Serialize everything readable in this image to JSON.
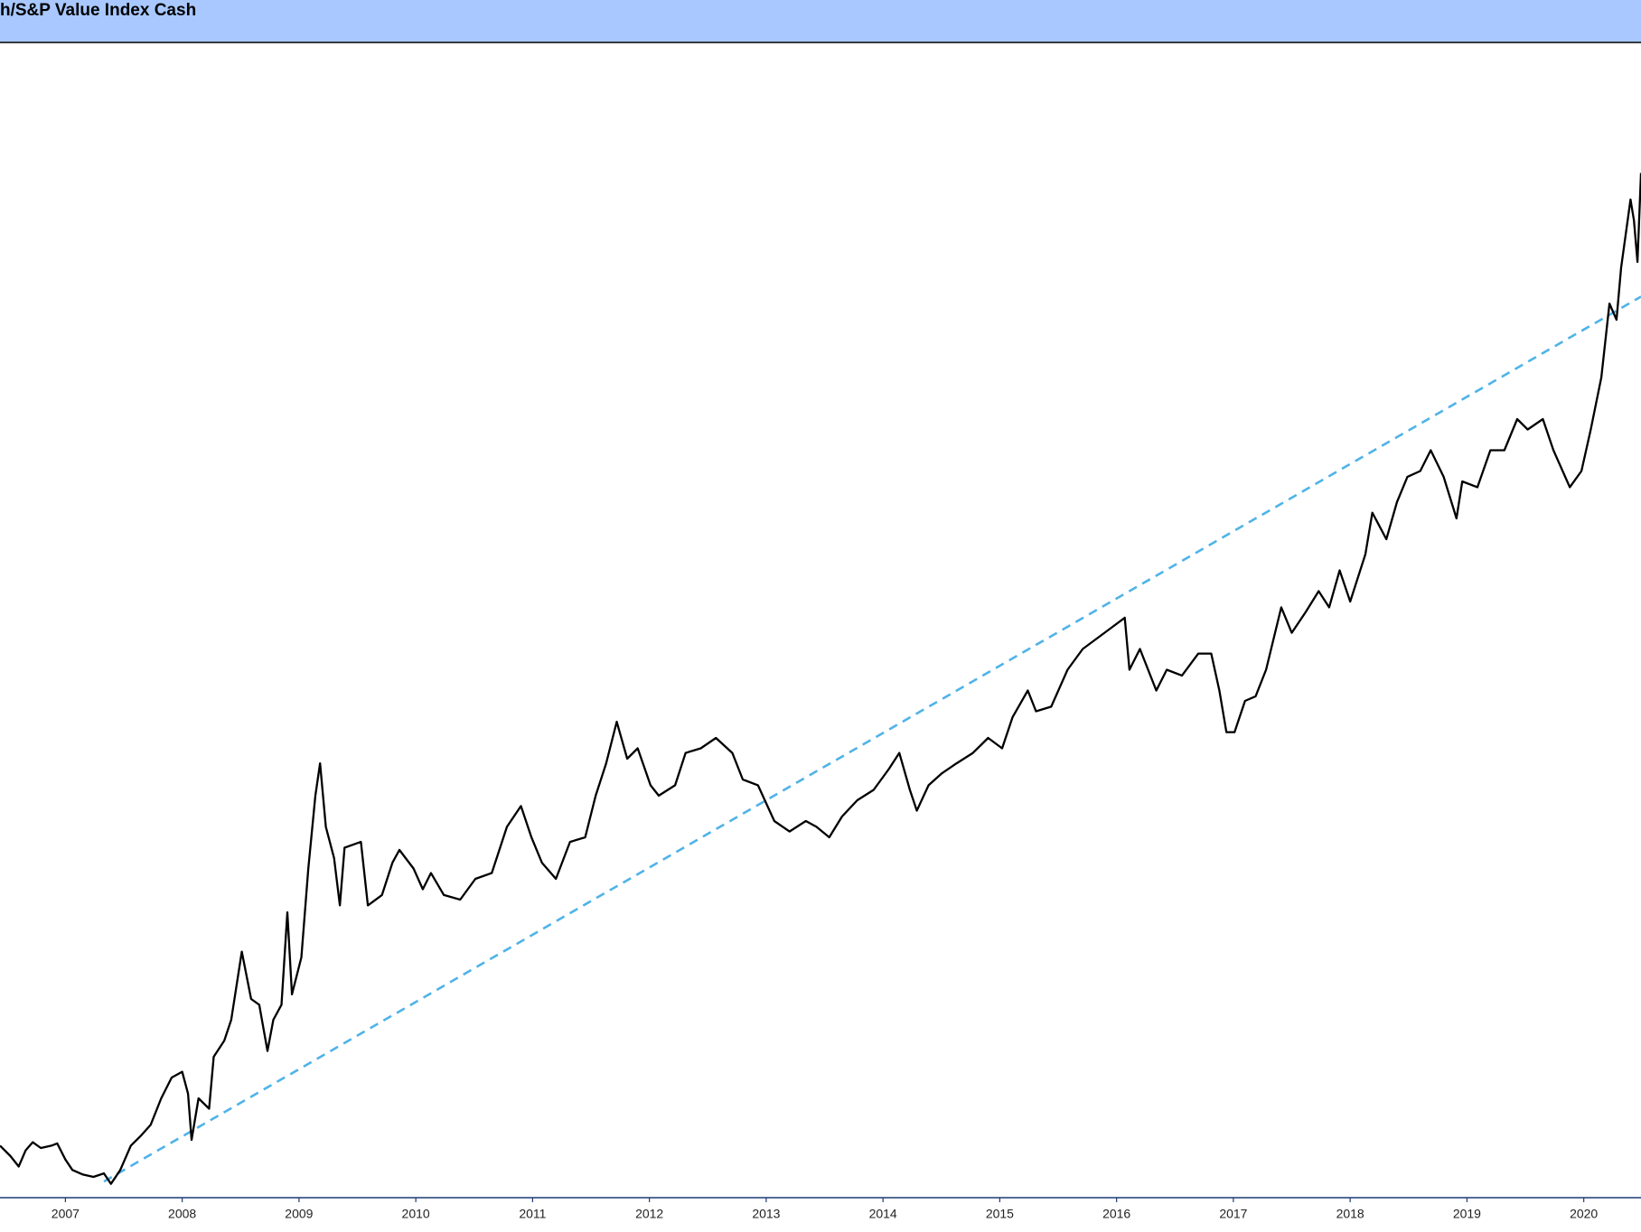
{
  "chart_data": {
    "type": "line",
    "title": "h/S&P Value Index Cash",
    "xlim": [
      2006.44,
      2020.49
    ],
    "xticks": [
      2007,
      2008,
      2009,
      2010,
      2011,
      2012,
      2013,
      2014,
      2015,
      2016,
      2017,
      2018,
      2019,
      2020
    ],
    "ylim": [
      0,
      100
    ],
    "header_color": "#a8c8ff",
    "axis_color": "#1f3b73",
    "series": [
      {
        "color": "#000000",
        "dashed": false,
        "x": [
          2006.44,
          2006.53,
          2006.6,
          2006.66,
          2006.72,
          2006.79,
          2006.88,
          2006.93,
          2007.0,
          2007.06,
          2007.15,
          2007.24,
          2007.33,
          2007.39,
          2007.47,
          2007.56,
          2007.65,
          2007.73,
          2007.82,
          2007.91,
          2008.0,
          2008.05,
          2008.08,
          2008.14,
          2008.23,
          2008.27,
          2008.36,
          2008.42,
          2008.51,
          2008.59,
          2008.66,
          2008.73,
          2008.78,
          2008.85,
          2008.9,
          2008.94,
          2009.02,
          2009.08,
          2009.14,
          2009.18,
          2009.23,
          2009.3,
          2009.35,
          2009.39,
          2009.53,
          2009.59,
          2009.71,
          2009.8,
          2009.86,
          2009.98,
          2010.06,
          2010.13,
          2010.24,
          2010.38,
          2010.51,
          2010.65,
          2010.78,
          2010.9,
          2010.99,
          2011.08,
          2011.2,
          2011.32,
          2011.45,
          2011.54,
          2011.63,
          2011.72,
          2011.81,
          2011.9,
          2012.01,
          2012.08,
          2012.22,
          2012.31,
          2012.44,
          2012.57,
          2012.71,
          2012.8,
          2012.93,
          2013.07,
          2013.2,
          2013.34,
          2013.43,
          2013.54,
          2013.65,
          2013.78,
          2013.92,
          2014.05,
          2014.14,
          2014.23,
          2014.29,
          2014.39,
          2014.5,
          2014.63,
          2014.77,
          2014.9,
          2015.02,
          2015.11,
          2015.24,
          2015.31,
          2015.44,
          2015.58,
          2015.71,
          2015.83,
          2015.95,
          2016.07,
          2016.11,
          2016.2,
          2016.34,
          2016.43,
          2016.56,
          2016.7,
          2016.81,
          2016.88,
          2016.94,
          2017.01,
          2017.1,
          2017.19,
          2017.28,
          2017.41,
          2017.5,
          2017.62,
          2017.73,
          2017.82,
          2017.91,
          2018.0,
          2018.13,
          2018.19,
          2018.31,
          2018.4,
          2018.49,
          2018.6,
          2018.69,
          2018.8,
          2018.91,
          2018.96,
          2019.09,
          2019.2,
          2019.32,
          2019.43,
          2019.52,
          2019.65,
          2019.74,
          2019.88,
          2019.98,
          2020.06,
          2020.15,
          2020.22,
          2020.28,
          2020.32,
          2020.4,
          2020.43,
          2020.46,
          2020.49
        ],
        "values": [
          4.5,
          3.6,
          2.7,
          4.1,
          4.8,
          4.3,
          4.5,
          4.7,
          3.3,
          2.4,
          2.0,
          1.8,
          2.1,
          1.2,
          2.4,
          4.5,
          5.4,
          6.3,
          8.6,
          10.4,
          10.9,
          9.0,
          5.0,
          8.6,
          7.7,
          12.2,
          13.6,
          15.4,
          21.3,
          17.2,
          16.7,
          12.7,
          15.4,
          16.7,
          24.7,
          17.6,
          20.8,
          28.5,
          34.8,
          37.6,
          32.1,
          29.4,
          25.3,
          30.3,
          30.8,
          25.3,
          26.2,
          29.0,
          30.1,
          28.5,
          26.7,
          28.1,
          26.2,
          25.8,
          27.6,
          28.1,
          32.1,
          33.9,
          31.2,
          29.0,
          27.6,
          30.8,
          31.2,
          34.8,
          37.6,
          41.2,
          38.0,
          38.9,
          35.7,
          34.8,
          35.7,
          38.5,
          38.9,
          39.8,
          38.5,
          36.2,
          35.7,
          32.6,
          31.7,
          32.6,
          32.1,
          31.2,
          33.0,
          34.4,
          35.3,
          37.1,
          38.5,
          35.3,
          33.5,
          35.7,
          36.7,
          37.6,
          38.5,
          39.8,
          38.9,
          41.6,
          43.9,
          42.1,
          42.5,
          45.7,
          47.5,
          48.4,
          49.3,
          50.2,
          45.7,
          47.5,
          43.9,
          45.7,
          45.2,
          47.1,
          47.1,
          43.9,
          40.3,
          40.3,
          43.0,
          43.4,
          45.7,
          51.1,
          48.9,
          50.7,
          52.5,
          51.1,
          54.3,
          51.6,
          55.7,
          59.3,
          57.0,
          60.2,
          62.4,
          62.9,
          64.7,
          62.4,
          58.8,
          62.0,
          61.5,
          64.7,
          64.7,
          67.4,
          66.5,
          67.4,
          64.7,
          61.5,
          62.9,
          66.5,
          71.0,
          77.4,
          76.0,
          80.5,
          86.4,
          84.6,
          81.0,
          88.7
        ]
      },
      {
        "color": "#4fb3e8",
        "dashed": true,
        "x": [
          2007.33,
          2020.49
        ],
        "values": [
          1.4,
          78.0
        ]
      }
    ]
  }
}
